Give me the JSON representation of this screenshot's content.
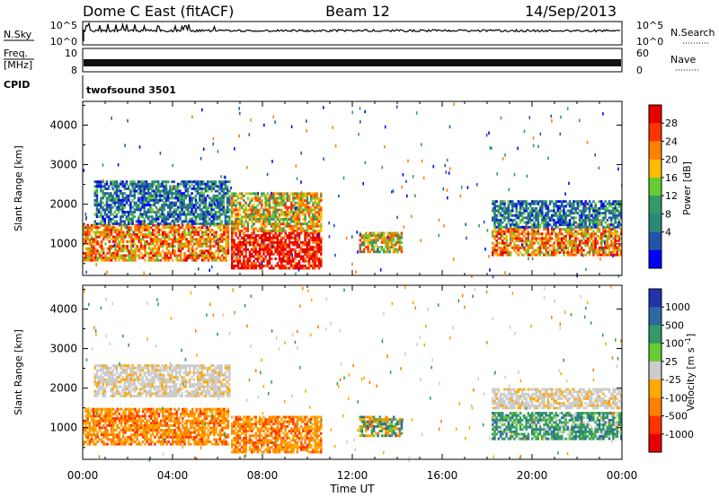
{
  "header": {
    "title": "Dome C East (fitACF)",
    "beam": "Beam 12",
    "date": "14/Sep/2013"
  },
  "top_panels": {
    "nsky_label": "N.Sky",
    "nsky_ticks": [
      "10^5",
      "10^0"
    ],
    "nsearch_label": "N.Search",
    "nsearch_ticks": [
      "10^5",
      "10^0"
    ],
    "freq_label_1": "Freq.",
    "freq_label_2": "[MHz]",
    "freq_ticks": [
      "10",
      "8"
    ],
    "nave_label": "Nave",
    "nave_ticks": [
      "60",
      "0"
    ],
    "cpid_label": "CPID",
    "cpid_value": "twofsound 3501"
  },
  "chart_data": [
    {
      "type": "heatmap",
      "name": "power-panel",
      "ylabel": "Slant Range [km]",
      "xlabel": "Time UT",
      "ylim": [
        200,
        4600
      ],
      "xlim": [
        0,
        24
      ],
      "y_ticks": [
        "1000",
        "2000",
        "3000",
        "4000"
      ],
      "x_ticks": [
        "00:00",
        "04:00",
        "08:00",
        "12:00",
        "16:00",
        "20:00",
        "00:00"
      ],
      "colorbar": {
        "label": "Power [dB]",
        "ticks": [
          "28",
          "24",
          "20",
          "16",
          "12",
          "8",
          "4"
        ],
        "colors": [
          "#e60000",
          "#ff3300",
          "#ff7f00",
          "#ffbb00",
          "#66cc33",
          "#339966",
          "#2a8a7a",
          "#2255aa",
          "#0000ff"
        ]
      },
      "regions": [
        {
          "t0": 0.0,
          "t1": 6.5,
          "r0": 600,
          "r1": 1500,
          "level": "high"
        },
        {
          "t0": 0.5,
          "t1": 6.5,
          "r0": 1500,
          "r1": 2600,
          "level": "low"
        },
        {
          "t0": 6.6,
          "t1": 10.6,
          "r0": 400,
          "r1": 1300,
          "level": "max"
        },
        {
          "t0": 6.6,
          "t1": 10.6,
          "r0": 1300,
          "r1": 2300,
          "level": "mid"
        },
        {
          "t0": 12.3,
          "t1": 14.2,
          "r0": 800,
          "r1": 1300,
          "level": "mid"
        },
        {
          "t0": 18.2,
          "t1": 24.0,
          "r0": 700,
          "r1": 1400,
          "level": "high"
        },
        {
          "t0": 18.2,
          "t1": 24.0,
          "r0": 1400,
          "r1": 2100,
          "level": "low"
        }
      ]
    },
    {
      "type": "heatmap",
      "name": "velocity-panel",
      "ylabel": "Slant Range [km]",
      "xlabel": "Time UT",
      "ylim": [
        200,
        4600
      ],
      "xlim": [
        0,
        24
      ],
      "y_ticks": [
        "1000",
        "2000",
        "3000",
        "4000"
      ],
      "x_ticks": [
        "00:00",
        "04:00",
        "08:00",
        "12:00",
        "16:00",
        "20:00",
        "00:00"
      ],
      "colorbar": {
        "label": "Velocity [m s^-1]",
        "ticks": [
          "1000",
          "500",
          "100",
          "25",
          "-25",
          "-100",
          "-500",
          "-1000"
        ],
        "colors": [
          "#2233aa",
          "#2a6aa0",
          "#339966",
          "#66cc33",
          "#cccccc",
          "#ffaa00",
          "#ff7f00",
          "#ff3300",
          "#e60000"
        ]
      },
      "regions": [
        {
          "t0": 0.0,
          "t1": 6.5,
          "r0": 600,
          "r1": 1500,
          "level": "neg"
        },
        {
          "t0": 0.5,
          "t1": 6.5,
          "r0": 1800,
          "r1": 2600,
          "level": "grey"
        },
        {
          "t0": 6.6,
          "t1": 10.6,
          "r0": 400,
          "r1": 1300,
          "level": "neg"
        },
        {
          "t0": 12.3,
          "t1": 14.2,
          "r0": 800,
          "r1": 1300,
          "level": "mixed"
        },
        {
          "t0": 18.2,
          "t1": 24.0,
          "r0": 700,
          "r1": 1400,
          "level": "pos"
        },
        {
          "t0": 18.2,
          "t1": 24.0,
          "r0": 1500,
          "r1": 2000,
          "level": "grey"
        }
      ]
    }
  ]
}
